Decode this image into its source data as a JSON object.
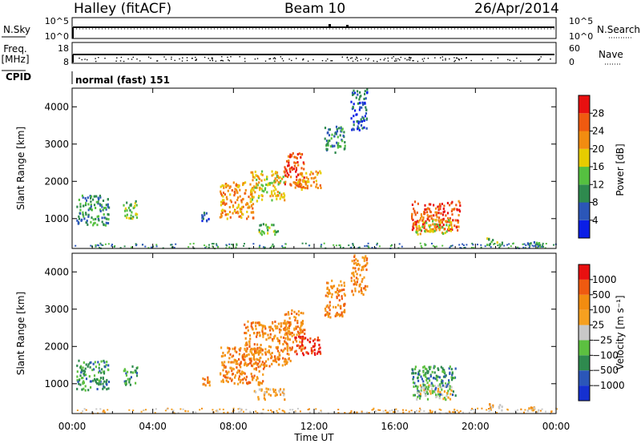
{
  "header": {
    "title": "Halley (fitACF)",
    "beam": "Beam 10",
    "date": "26/Apr/2014"
  },
  "nsky": {
    "label": "N.Sky",
    "right_label": "N.Search",
    "left_ticks": [
      "10^5",
      "10^0"
    ],
    "right_ticks": [
      "10^5",
      "10^0"
    ]
  },
  "freq": {
    "label_line1": "Freq.",
    "label_line2": "[MHz]",
    "right_label": "Nave",
    "left_ticks": [
      "18",
      "8"
    ],
    "right_ticks": [
      "60",
      "0"
    ]
  },
  "cpid": {
    "label": "CPID",
    "text": "normal (fast) 151"
  },
  "time_axis": {
    "label": "Time UT",
    "ticks": [
      "00:00",
      "04:00",
      "08:00",
      "12:00",
      "16:00",
      "20:00",
      "00:00"
    ],
    "range_hours": [
      0,
      24
    ]
  },
  "colors": {
    "power": [
      "#0a1ee6",
      "#2b56b8",
      "#2e8a4e",
      "#55c040",
      "#e6cc00",
      "#f28c10",
      "#ef5a10",
      "#e81010"
    ],
    "velocity": [
      "#e81010",
      "#ef5a10",
      "#f28c10",
      "#f6a020",
      "#c8c8c8",
      "#5cc040",
      "#2e8a4e",
      "#2b56b8",
      "#1530d0"
    ]
  },
  "power_bar": {
    "label": "Power [dB]",
    "ticks": [
      "28",
      "24",
      "20",
      "16",
      "12",
      "8",
      "4"
    ]
  },
  "velocity_bar": {
    "label": "Velocity [m s⁻¹]",
    "ticks": [
      "1000",
      "500",
      "100",
      "25",
      "−25",
      "−100",
      "−500",
      "−1000"
    ]
  },
  "chart_data": [
    {
      "type": "heatmap",
      "ylabel": "Slant Range [km]",
      "yticks": [
        "4000",
        "3000",
        "2000",
        "1000"
      ],
      "xlim": [
        0,
        24
      ],
      "ylim": [
        200,
        4500
      ],
      "quantity": "Power [dB]",
      "patches": [
        {
          "t0": 0.2,
          "t1": 1.8,
          "r0": 850,
          "r1": 1650,
          "level": 2
        },
        {
          "t0": 2.5,
          "t1": 3.2,
          "r0": 1000,
          "r1": 1500,
          "level": 3
        },
        {
          "t0": 6.4,
          "t1": 6.8,
          "r0": 950,
          "r1": 1200,
          "level": 1
        },
        {
          "t0": 7.3,
          "t1": 9.0,
          "r0": 1000,
          "r1": 2000,
          "level": 5
        },
        {
          "t0": 8.8,
          "t1": 10.5,
          "r0": 1500,
          "r1": 2300,
          "level": 4
        },
        {
          "t0": 9.2,
          "t1": 10.2,
          "r0": 600,
          "r1": 900,
          "level": 3
        },
        {
          "t0": 10.5,
          "t1": 11.5,
          "r0": 1900,
          "r1": 2800,
          "level": 6
        },
        {
          "t0": 11.0,
          "t1": 12.3,
          "r0": 1800,
          "r1": 2300,
          "level": 5
        },
        {
          "t0": 12.5,
          "t1": 13.5,
          "r0": 2800,
          "r1": 3500,
          "level": 2
        },
        {
          "t0": 13.8,
          "t1": 14.6,
          "r0": 3400,
          "r1": 4500,
          "level": 1
        },
        {
          "t0": 16.8,
          "t1": 19.2,
          "r0": 700,
          "r1": 1500,
          "level": 6
        },
        {
          "t0": 17.0,
          "t1": 18.8,
          "r0": 600,
          "r1": 1000,
          "level": 4
        },
        {
          "t0": 20.5,
          "t1": 21.3,
          "r0": 300,
          "r1": 500,
          "level": 3
        },
        {
          "t0": 22.5,
          "t1": 23.2,
          "r0": 300,
          "r1": 400,
          "level": 2
        }
      ]
    },
    {
      "type": "heatmap",
      "ylabel": "Slant Range [km]",
      "yticks": [
        "4000",
        "3000",
        "2000",
        "1000"
      ],
      "xlim": [
        0,
        24
      ],
      "ylim": [
        200,
        4500
      ],
      "quantity": "Velocity [m s⁻¹]",
      "patches": [
        {
          "t0": 0.2,
          "t1": 1.8,
          "r0": 850,
          "r1": 1650,
          "level": 6
        },
        {
          "t0": 2.5,
          "t1": 3.2,
          "r0": 1000,
          "r1": 1500,
          "level": 6
        },
        {
          "t0": 6.4,
          "t1": 6.8,
          "r0": 950,
          "r1": 1200,
          "level": 2
        },
        {
          "t0": 7.3,
          "t1": 9.5,
          "r0": 1000,
          "r1": 2000,
          "level": 2
        },
        {
          "t0": 8.5,
          "t1": 10.8,
          "r0": 1500,
          "r1": 2700,
          "level": 2
        },
        {
          "t0": 9.0,
          "t1": 10.5,
          "r0": 600,
          "r1": 900,
          "level": 3
        },
        {
          "t0": 10.5,
          "t1": 11.5,
          "r0": 1900,
          "r1": 3000,
          "level": 2
        },
        {
          "t0": 11.0,
          "t1": 12.3,
          "r0": 1800,
          "r1": 2300,
          "level": 0
        },
        {
          "t0": 12.5,
          "t1": 13.5,
          "r0": 2800,
          "r1": 3800,
          "level": 2
        },
        {
          "t0": 13.8,
          "t1": 14.6,
          "r0": 3400,
          "r1": 4500,
          "level": 2
        },
        {
          "t0": 16.8,
          "t1": 19.0,
          "r0": 700,
          "r1": 1500,
          "level": 6
        },
        {
          "t0": 17.0,
          "t1": 18.8,
          "r0": 600,
          "r1": 1000,
          "level": 4
        },
        {
          "t0": 20.5,
          "t1": 21.3,
          "r0": 300,
          "r1": 500,
          "level": 3
        },
        {
          "t0": 22.5,
          "t1": 23.2,
          "r0": 300,
          "r1": 400,
          "level": 3
        }
      ]
    }
  ]
}
